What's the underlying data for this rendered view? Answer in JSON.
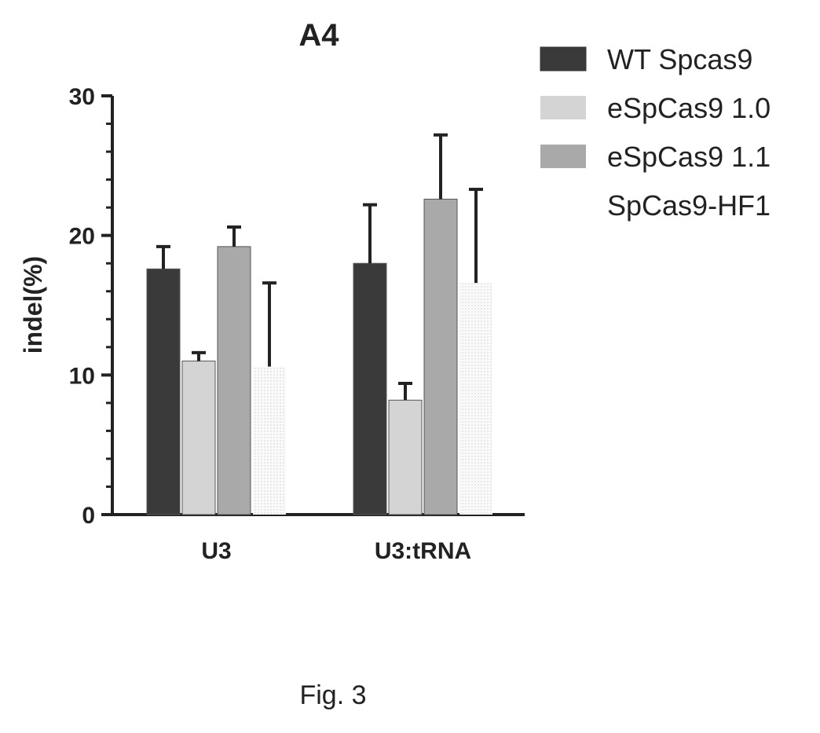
{
  "chart_data": {
    "type": "bar",
    "title": "A4",
    "xlabel": "",
    "ylabel": "indel(%)",
    "ylim": [
      0,
      30
    ],
    "yticks": [
      0,
      10,
      20,
      30
    ],
    "categories": [
      "U3",
      "U3:tRNA"
    ],
    "series": [
      {
        "name": "WT Spcas9",
        "values": [
          17.6,
          18.0
        ],
        "errors": [
          1.6,
          4.2
        ],
        "color": "#3a3a3a"
      },
      {
        "name": "eSpCas9 1.0",
        "values": [
          11.0,
          8.2
        ],
        "errors": [
          0.6,
          1.2
        ],
        "color": "#d4d4d4"
      },
      {
        "name": "eSpCas9 1.1",
        "values": [
          19.2,
          22.6
        ],
        "errors": [
          1.4,
          4.6
        ],
        "color": "#a9a9a9"
      },
      {
        "name": "SpCas9-HF1",
        "values": [
          10.6,
          16.6
        ],
        "errors": [
          6.0,
          6.7
        ],
        "color": "#f4f4f4"
      }
    ],
    "grid": false,
    "legend": "right"
  },
  "caption": "Fig. 3"
}
